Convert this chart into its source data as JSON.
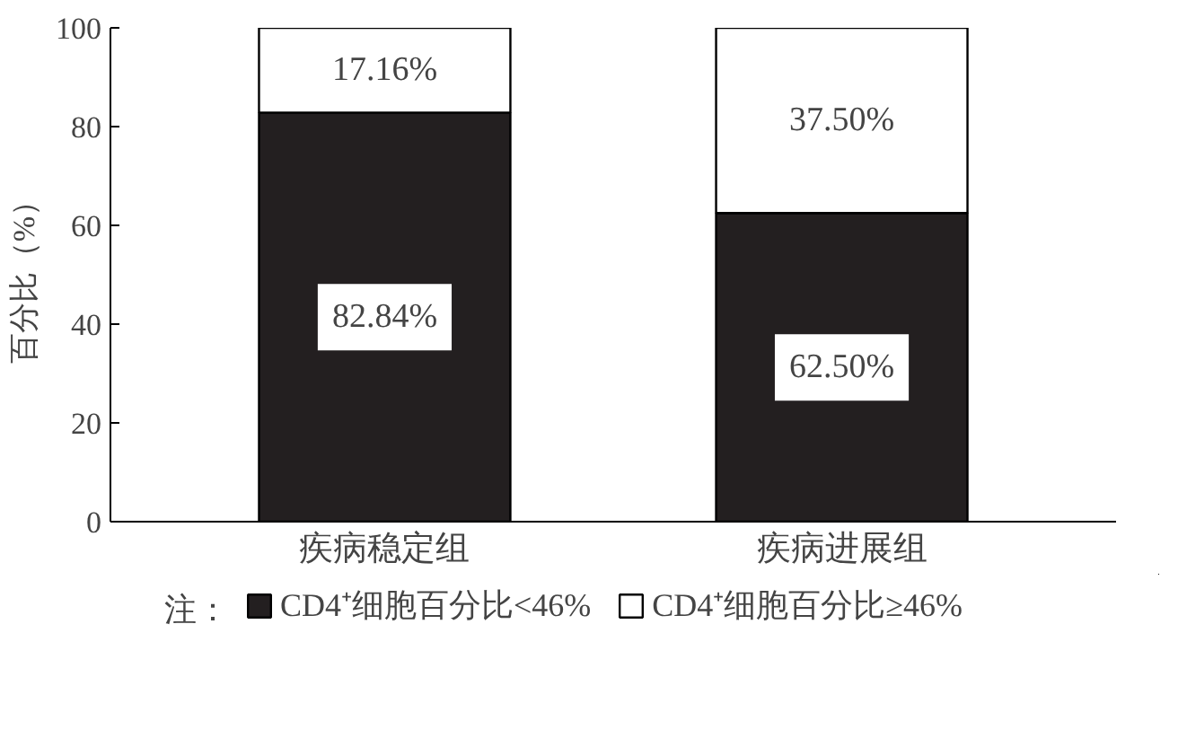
{
  "chart_data": {
    "type": "bar",
    "stacked": true,
    "categories": [
      "疾病稳定组",
      "疾病进展组"
    ],
    "ylabel": "百分比（%）",
    "ylim": [
      0,
      100
    ],
    "yticks": [
      0,
      20,
      40,
      60,
      80,
      100
    ],
    "grid": false,
    "legend": "bottom",
    "legend_title": "注：",
    "series": [
      {
        "name": "CD4⁺细胞百分比<46%",
        "color": "#231f20",
        "values": [
          82.84,
          62.5
        ],
        "value_labels": [
          "82.84%",
          "62.50%"
        ]
      },
      {
        "name": "CD4⁺细胞百分比≥46%",
        "color": "#ffffff",
        "values": [
          17.16,
          37.5
        ],
        "value_labels": [
          "17.16%",
          "37.50%"
        ]
      }
    ]
  }
}
